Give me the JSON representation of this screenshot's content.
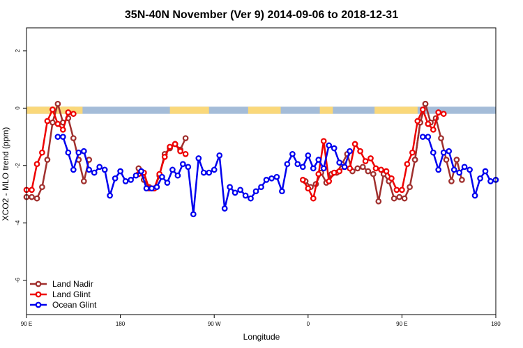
{
  "chart_data": {
    "type": "line",
    "title": "35N-40N November (Ver 9)   2014-09-06 to 2018-12-31",
    "xlabel": "Longitude",
    "ylabel": "XCO2 - MLO trend (ppm)",
    "xlim": [
      -180,
      180
    ],
    "ylim": [
      -7.2,
      2.8
    ],
    "x_ticks": [
      {
        "value": -180,
        "label": "90 E"
      },
      {
        "value": -108,
        "label": "180"
      },
      {
        "value": -36,
        "label": "90 W"
      },
      {
        "value": 36,
        "label": "0"
      },
      {
        "value": 108,
        "label": "90 E"
      },
      {
        "value": 180,
        "label": "180"
      }
    ],
    "y_ticks": [
      {
        "value": -6,
        "label": "-6"
      },
      {
        "value": -4,
        "label": "-4"
      },
      {
        "value": -2,
        "label": "-2"
      },
      {
        "value": 0,
        "label": "0"
      },
      {
        "value": 2,
        "label": "2"
      }
    ],
    "legend_position": "bottom-left",
    "surface_strip": {
      "y_top": 0.05,
      "y_bottom": -0.2,
      "ocean_color": "#a4bcd8",
      "land_color": "#fad87a",
      "land_segments": [
        [
          -180,
          -137
        ],
        [
          -157,
          -143
        ],
        [
          -70,
          -40
        ],
        [
          -10,
          15
        ],
        [
          45,
          55
        ],
        [
          87,
          120
        ]
      ]
    },
    "series": [
      {
        "name": "Land Nadir",
        "color": "#a0302e",
        "segments": [
          {
            "x": [
              -180,
              -176,
              -172,
              -168,
              -164,
              -160,
              -156,
              -152,
              -148,
              -144,
              -140,
              -136,
              -132
            ],
            "y": [
              -3.1,
              -3.1,
              -3.15,
              -2.75,
              -1.8,
              -0.5,
              0.15,
              -0.5,
              -0.35,
              -1.05,
              -1.8,
              -2.55,
              -1.8
            ]
          },
          {
            "x": [
              -94,
              -90,
              -86,
              -82,
              -78,
              -74,
              -70,
              -66,
              -62,
              -58
            ],
            "y": [
              -2.1,
              -2.5,
              -2.75,
              -2.8,
              -2.35,
              -1.6,
              -1.4,
              -1.25,
              -1.45,
              -1.05
            ]
          },
          {
            "x": [
              34,
              38,
              42,
              46,
              50,
              54,
              58,
              62,
              66,
              70,
              74,
              78,
              82,
              86,
              90,
              94,
              98,
              102,
              106,
              110,
              114,
              118,
              122,
              126
            ],
            "y": [
              -2.55,
              -2.75,
              -2.65,
              -2.25,
              -2.6,
              -2.3,
              -2.25,
              -1.95,
              -1.6,
              -2.2,
              -2.1,
              -2.05,
              -2.2,
              -2.3,
              -3.25,
              -2.3,
              -2.55,
              -3.15,
              -3.1,
              -3.15,
              -2.75,
              -1.8,
              -0.5,
              0.15
            ]
          },
          {
            "x": [
              118,
              122,
              126,
              130,
              134,
              138,
              142,
              146,
              150,
              154
            ],
            "y": [
              -1.8,
              -0.5,
              0.15,
              -0.5,
              -0.35,
              -1.05,
              -1.8,
              -2.55,
              -1.8,
              -2.5
            ]
          }
        ]
      },
      {
        "name": "Land Glint",
        "color": "#ee0000",
        "segments": [
          {
            "x": [
              -180,
              -176,
              -172,
              -168,
              -164,
              -160,
              -156,
              -152,
              -148,
              -144
            ],
            "y": [
              -2.85,
              -2.85,
              -1.95,
              -1.55,
              -0.45,
              -0.05,
              -0.55,
              -0.75,
              -0.15,
              -0.2
            ]
          },
          {
            "x": [
              -94,
              -90,
              -86,
              -82,
              -78,
              -74,
              -70,
              -66,
              -62,
              -58
            ],
            "y": [
              -2.3,
              -2.25,
              -2.8,
              -2.8,
              -2.3,
              -1.7,
              -1.35,
              -1.25,
              -1.5,
              -1.6
            ]
          },
          {
            "x": [
              32,
              36,
              40,
              44,
              48,
              52,
              56,
              60,
              64,
              68,
              72,
              76,
              80,
              84,
              88,
              92,
              96,
              100,
              104,
              108,
              112,
              116,
              120,
              124,
              128,
              132,
              136,
              140
            ],
            "y": [
              -2.5,
              -2.8,
              -3.15,
              -2.3,
              -1.15,
              -2.55,
              -2.25,
              -2.2,
              -2.05,
              -2.1,
              -1.25,
              -1.5,
              -1.85,
              -1.75,
              -2.1,
              -2.15,
              -2.2,
              -2.45,
              -2.85,
              -2.85,
              -1.95,
              -1.55,
              -0.45,
              -0.05,
              -0.55,
              -0.75,
              -0.15,
              -0.2
            ]
          }
        ]
      },
      {
        "name": "Ocean Glint",
        "color": "#0000ee",
        "segments": [
          {
            "x": [
              -156,
              -152,
              -148,
              -144,
              -140,
              -136,
              -132,
              -128,
              -124,
              -120,
              -116,
              -112,
              -108,
              -104,
              -100,
              -96,
              -92,
              -88,
              -84,
              -80,
              -76,
              -72,
              -68,
              -64,
              -60,
              -56,
              -52,
              -48,
              -44,
              -40,
              -36,
              -32,
              -28,
              -24,
              -20,
              -16,
              -12,
              -8,
              -4,
              0,
              4,
              8,
              12,
              16,
              20,
              24,
              28,
              32,
              36,
              40,
              44,
              48,
              52,
              56,
              60,
              64,
              68
            ],
            "y": [
              -1.0,
              -1.0,
              -1.55,
              -2.15,
              -1.55,
              -1.5,
              -2.15,
              -2.25,
              -2.05,
              -2.15,
              -3.05,
              -2.45,
              -2.2,
              -2.55,
              -2.5,
              -2.35,
              -2.2,
              -2.8,
              -2.8,
              -2.75,
              -2.4,
              -2.6,
              -2.15,
              -2.35,
              -1.95,
              -2.05,
              -3.7,
              -1.75,
              -2.25,
              -2.25,
              -2.15,
              -1.65,
              -3.5,
              -2.75,
              -2.95,
              -2.85,
              -3.05,
              -3.15,
              -2.9,
              -2.75,
              -2.5,
              -2.45,
              -2.4,
              -2.9,
              -1.95,
              -1.6,
              -1.95,
              -2.05,
              -1.65,
              -2.1,
              -1.8,
              -2.1,
              -1.3,
              -1.4,
              -1.9,
              -2.05,
              -1.5
            ]
          },
          {
            "x": [
              124,
              128,
              132,
              136,
              140,
              144,
              148,
              152,
              156,
              160,
              164,
              168,
              172,
              176,
              180
            ],
            "y": [
              -1.0,
              -1.0,
              -1.55,
              -2.15,
              -1.55,
              -1.5,
              -2.15,
              -2.25,
              -2.05,
              -2.15,
              -3.05,
              -2.45,
              -2.2,
              -2.55,
              -2.5
            ]
          }
        ]
      }
    ]
  }
}
